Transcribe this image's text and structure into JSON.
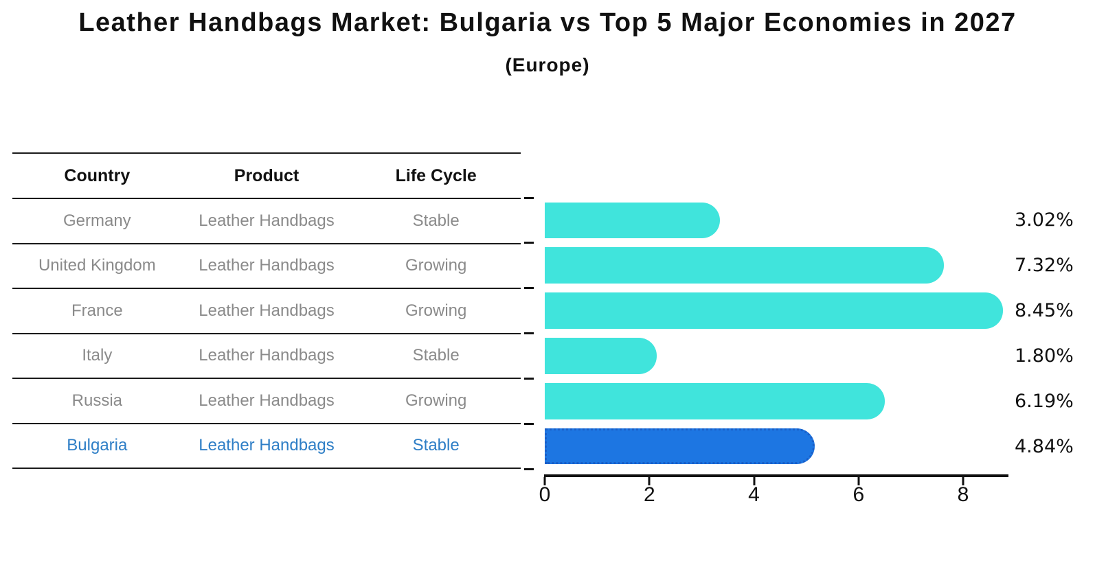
{
  "title": "Leather Handbags Market: Bulgaria vs Top 5 Major Economies in 2027",
  "subtitle": "(Europe)",
  "table": {
    "headers": [
      "Country",
      "Product",
      "Life Cycle"
    ],
    "rows": [
      {
        "country": "Germany",
        "product": "Leather Handbags",
        "life_cycle": "Stable",
        "highlight": false
      },
      {
        "country": "United Kingdom",
        "product": "Leather Handbags",
        "life_cycle": "Growing",
        "highlight": false
      },
      {
        "country": "France",
        "product": "Leather Handbags",
        "life_cycle": "Growing",
        "highlight": false
      },
      {
        "country": "Italy",
        "product": "Leather Handbags",
        "life_cycle": "Stable",
        "highlight": false
      },
      {
        "country": "Russia",
        "product": "Leather Handbags",
        "life_cycle": "Growing",
        "highlight": false
      },
      {
        "country": "Bulgaria",
        "product": "Leather Handbags",
        "life_cycle": "Stable",
        "highlight": true
      }
    ]
  },
  "chart_data": {
    "type": "bar",
    "orientation": "horizontal",
    "title": "Leather Handbags Market: Bulgaria vs Top 5 Major Economies in 2027 (Europe)",
    "categories": [
      "Germany",
      "United Kingdom",
      "France",
      "Italy",
      "Russia",
      "Bulgaria"
    ],
    "values": [
      3.02,
      7.32,
      8.45,
      1.8,
      6.19,
      4.84
    ],
    "value_labels": [
      "3.02%",
      "7.32%",
      "8.45%",
      "1.80%",
      "6.19%",
      "4.84%"
    ],
    "xlabel": "",
    "ylabel": "",
    "xlim": [
      0,
      8.9
    ],
    "xticks": [
      0,
      2,
      4,
      6,
      8
    ],
    "xtick_labels": [
      "0",
      "2",
      "4",
      "6",
      "8"
    ],
    "grid": false,
    "legend": false,
    "highlight_index": 5,
    "bar_color": "#40E4DC",
    "highlight_bar_color": "#1D76E2",
    "highlight_border_color": "#1A5FC8"
  },
  "colors": {
    "highlight_text": "#2E7EC6",
    "table_text": "#8A8A8A",
    "header_text": "#111111",
    "axis_color": "#111111"
  }
}
